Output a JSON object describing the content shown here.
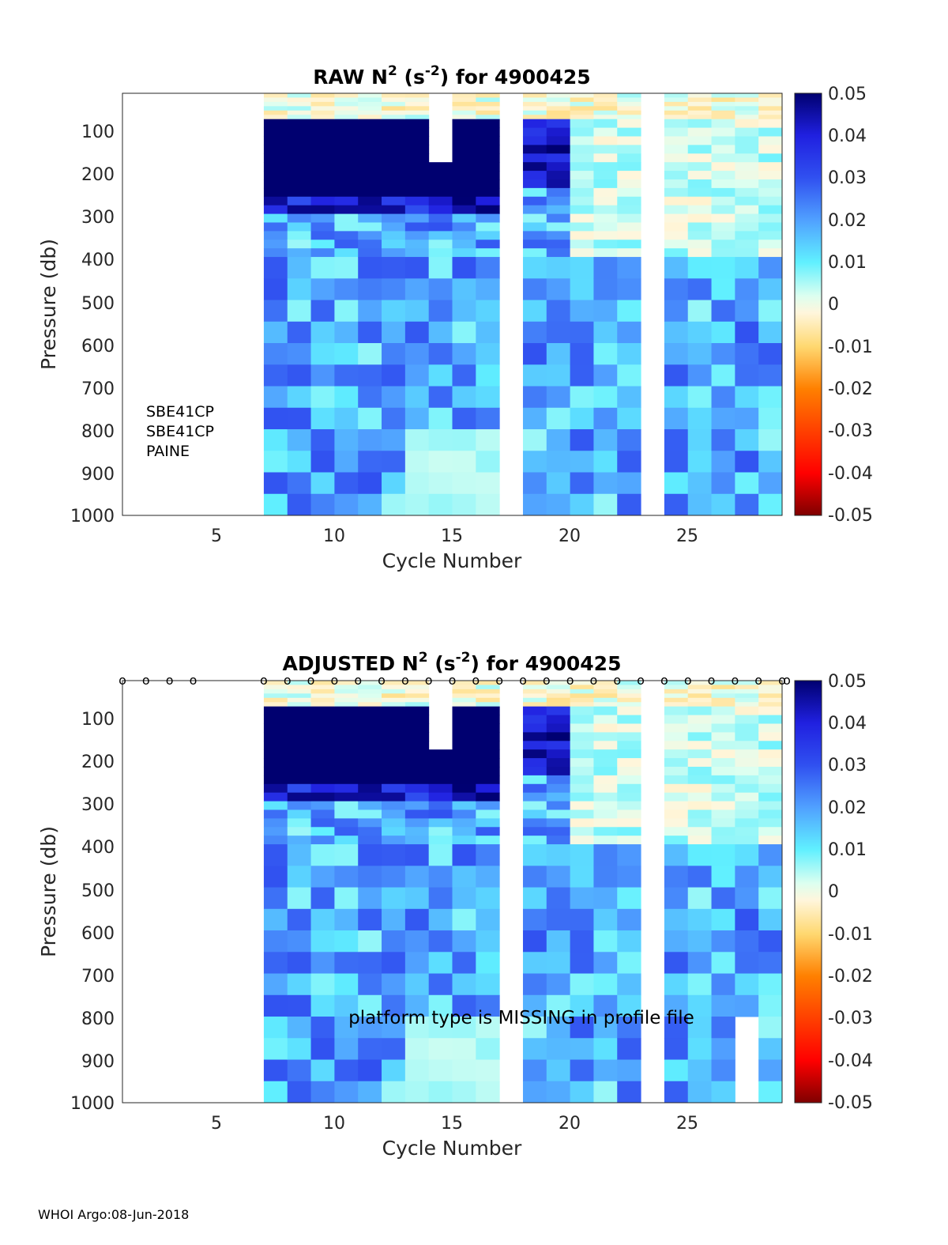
{
  "footer": "WHOI Argo:08-Jun-2018",
  "colorbar": {
    "ticks": [
      "0.05",
      "0.04",
      "0.03",
      "0.02",
      "0.01",
      "0",
      "-0.01",
      "-0.02",
      "-0.03",
      "-0.04",
      "-0.05"
    ],
    "colormap": [
      "#7f0000",
      "#ff0000",
      "#ff8000",
      "#ffd870",
      "#fff6dc",
      "#dcfff0",
      "#60f0ff",
      "#50a0ff",
      "#3050f0",
      "#2020e0",
      "#000070"
    ]
  },
  "chart_data": [
    {
      "type": "heatmap",
      "title_prefix": "RAW N",
      "title_sup1": "2",
      "title_mid": " (s",
      "title_sup2": "-2",
      "title_suffix": ") for 4900425",
      "xlabel": "Cycle Number",
      "ylabel": "Pressure (db)",
      "xlim": [
        1,
        29
      ],
      "ylim": [
        1000,
        20
      ],
      "xticks": [
        "5",
        "10",
        "15",
        "20",
        "25"
      ],
      "yticks": [
        "100",
        "200",
        "300",
        "400",
        "500",
        "600",
        "700",
        "800",
        "900",
        "1000"
      ],
      "clim": [
        -0.05,
        0.05
      ],
      "sensor_labels": [
        "SBE41CP",
        "SBE41CP",
        "PAINE"
      ],
      "cycles_with_data": [
        8,
        9,
        10,
        11,
        12,
        13,
        14,
        15,
        16,
        17,
        19,
        20,
        21,
        22,
        23,
        25,
        26,
        27,
        28,
        29
      ],
      "gap_cycles": [
        18,
        24
      ],
      "dense_depth_to_db": 160,
      "dense_layer_value": 0.05,
      "notes": "Near-surface layer (20-80 db) values near 0 to -0.01; 80-260 db strongly positive (~0.05) for cycles 8-17; deeper values mostly 0.005-0.03"
    },
    {
      "type": "heatmap",
      "title_prefix": "ADJUSTED N",
      "title_sup1": "2",
      "title_mid": " (s",
      "title_sup2": "-2",
      "title_suffix": ") for 4900425",
      "xlabel": "Cycle Number",
      "ylabel": "Pressure (db)",
      "xlim": [
        1,
        29
      ],
      "ylim": [
        1000,
        20
      ],
      "xticks": [
        "5",
        "10",
        "15",
        "20",
        "25"
      ],
      "yticks": [
        "100",
        "200",
        "300",
        "400",
        "500",
        "600",
        "700",
        "800",
        "900",
        "1000"
      ],
      "clim": [
        -0.05,
        0.05
      ],
      "annotation": "platform type is MISSING in profile file",
      "profile_markers": [
        1,
        2,
        3,
        4,
        7,
        8,
        9,
        10,
        11,
        12,
        13,
        14,
        15,
        16,
        17,
        18,
        19,
        20,
        21,
        22,
        23,
        24,
        25,
        26,
        27,
        28,
        29,
        30
      ],
      "profile_marker_symbol": "o",
      "cycles_with_data": [
        8,
        9,
        10,
        11,
        12,
        13,
        14,
        15,
        16,
        17,
        19,
        20,
        21,
        22,
        23,
        25,
        26,
        27,
        28,
        29
      ],
      "gap_cycles": [
        18,
        24
      ],
      "notes": "Same field as RAW; cycle 28 missing below ~800 db"
    }
  ]
}
